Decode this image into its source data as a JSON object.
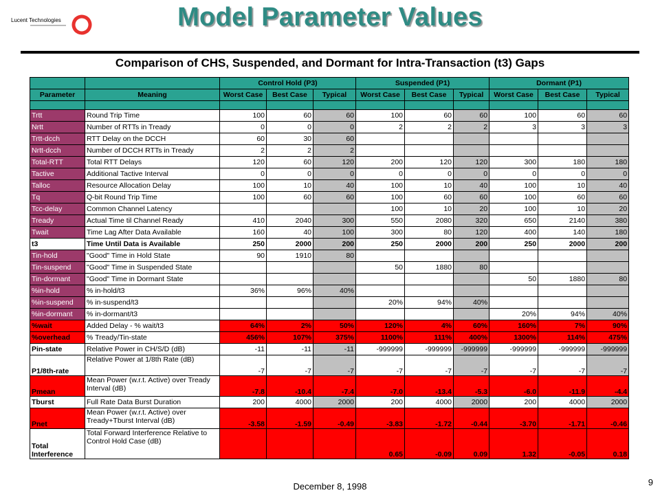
{
  "logo": {
    "text": "Lucent Technologies",
    "color": "#e8322e"
  },
  "title": "Model Parameter Values",
  "subtitle": "Comparison of CHS, Suspended, and Dormant for Intra-Transaction (t3) Gaps",
  "header": {
    "parameter": "Parameter",
    "meaning": "Meaning",
    "groups": [
      "Control Hold (P3)",
      "Suspended (P1)",
      "Dormant (P1)"
    ],
    "cols": [
      "Worst Case",
      "Best Case",
      "Typical"
    ]
  },
  "rows": [
    {
      "p": "Trtt",
      "m": "Round Trip Time",
      "v": [
        [
          "100",
          "60",
          "60"
        ],
        [
          "100",
          "60",
          "60"
        ],
        [
          "100",
          "60",
          "60"
        ]
      ]
    },
    {
      "p": "Nrtt",
      "m": "Number of RTTs in Tready",
      "v": [
        [
          "0",
          "0",
          "0"
        ],
        [
          "2",
          "2",
          "2"
        ],
        [
          "3",
          "3",
          "3"
        ]
      ]
    },
    {
      "p": "Trtt-dcch",
      "m": "RTT Delay on the DCCH",
      "v": [
        [
          "60",
          "30",
          "60"
        ],
        [
          "",
          "",
          ""
        ],
        [
          "",
          "",
          ""
        ]
      ]
    },
    {
      "p": "Nrtt-dcch",
      "m": "Number of DCCH RTTs in Tready",
      "v": [
        [
          "2",
          "2",
          "2"
        ],
        [
          "",
          "",
          ""
        ],
        [
          "",
          "",
          ""
        ]
      ]
    },
    {
      "p": "Total-RTT",
      "m": "Total RTT Delays",
      "v": [
        [
          "120",
          "60",
          "120"
        ],
        [
          "200",
          "120",
          "120"
        ],
        [
          "300",
          "180",
          "180"
        ]
      ]
    },
    {
      "p": "Tactive",
      "m": "Additional Tactive Interval",
      "v": [
        [
          "0",
          "0",
          "0"
        ],
        [
          "0",
          "0",
          "0"
        ],
        [
          "0",
          "0",
          "0"
        ]
      ]
    },
    {
      "p": "Talloc",
      "m": "Resource Allocation Delay",
      "v": [
        [
          "100",
          "10",
          "40"
        ],
        [
          "100",
          "10",
          "40"
        ],
        [
          "100",
          "10",
          "40"
        ]
      ]
    },
    {
      "p": "Tq",
      "m": "Q-bit Round Trip Time",
      "v": [
        [
          "100",
          "60",
          "60"
        ],
        [
          "100",
          "60",
          "60"
        ],
        [
          "100",
          "60",
          "60"
        ]
      ]
    },
    {
      "p": "Tcc-delay",
      "m": "Common Channel Latency",
      "v": [
        [
          "",
          "",
          ""
        ],
        [
          "100",
          "10",
          "20"
        ],
        [
          "100",
          "10",
          "20"
        ]
      ]
    },
    {
      "p": "Tready",
      "m": "Actual Time til Channel Ready",
      "v": [
        [
          "410",
          "2040",
          "300"
        ],
        [
          "550",
          "2080",
          "320"
        ],
        [
          "650",
          "2140",
          "380"
        ]
      ]
    },
    {
      "p": "Twait",
      "m": "Time Lag After Data Available",
      "v": [
        [
          "160",
          "40",
          "100"
        ],
        [
          "300",
          "80",
          "120"
        ],
        [
          "400",
          "140",
          "180"
        ]
      ]
    },
    {
      "p": "t3",
      "m": "Time Until Data is Available",
      "v": [
        [
          "250",
          "2000",
          "200"
        ],
        [
          "250",
          "2000",
          "200"
        ],
        [
          "250",
          "2000",
          "200"
        ]
      ]
    },
    {
      "p": "Tin-hold",
      "m": "\"Good\" Time in Hold State",
      "v": [
        [
          "90",
          "1910",
          "80"
        ],
        [
          "",
          "",
          ""
        ],
        [
          "",
          "",
          ""
        ]
      ]
    },
    {
      "p": "Tin-suspend",
      "m": "\"Good\" Time in Suspended State",
      "v": [
        [
          "",
          "",
          ""
        ],
        [
          "50",
          "1880",
          "80"
        ],
        [
          "",
          "",
          ""
        ]
      ]
    },
    {
      "p": "Tin-dormant",
      "m": "\"Good\" Time in Dormant State",
      "v": [
        [
          "",
          "",
          ""
        ],
        [
          "",
          "",
          ""
        ],
        [
          "50",
          "1880",
          "80"
        ]
      ]
    },
    {
      "p": "%in-hold",
      "m": "% in-hold/t3",
      "v": [
        [
          "36%",
          "96%",
          "40%"
        ],
        [
          "",
          "",
          ""
        ],
        [
          "",
          "",
          ""
        ]
      ]
    },
    {
      "p": "%in-suspend",
      "m": "% in-suspend/t3",
      "v": [
        [
          "",
          "",
          ""
        ],
        [
          "20%",
          "94%",
          "40%"
        ],
        [
          "",
          "",
          ""
        ]
      ]
    },
    {
      "p": "%in-dormant",
      "m": "% in-dormant/t3",
      "v": [
        [
          "",
          "",
          ""
        ],
        [
          "",
          "",
          ""
        ],
        [
          "20%",
          "94%",
          "40%"
        ]
      ]
    },
    {
      "p": "%wait",
      "m": "Added Delay - % wait/t3",
      "v": [
        [
          "64%",
          "2%",
          "50%"
        ],
        [
          "120%",
          "4%",
          "60%"
        ],
        [
          "160%",
          "7%",
          "90%"
        ]
      ]
    },
    {
      "p": "%overhead",
      "m": "% Tready/Tin-state",
      "v": [
        [
          "456%",
          "107%",
          "375%"
        ],
        [
          "1100%",
          "111%",
          "400%"
        ],
        [
          "1300%",
          "114%",
          "475%"
        ]
      ]
    },
    {
      "p": "Pin-state",
      "m": "Relative Power in CH/S/D (dB)",
      "v": [
        [
          "-11",
          "-11",
          "-11"
        ],
        [
          "-999999",
          "-999999",
          "-999999"
        ],
        [
          "-999999",
          "-999999",
          "-999999"
        ]
      ]
    },
    {
      "p": "P1/8th-rate",
      "m": "Relative Power at 1/8th Rate (dB)",
      "v": [
        [
          "-7",
          "-7",
          "-7"
        ],
        [
          "-7",
          "-7",
          "-7"
        ],
        [
          "-7",
          "-7",
          "-7"
        ]
      ]
    },
    {
      "p": "Pmean",
      "m": "Mean Power (w.r.t. Active) over Tready Interval (dB)",
      "v": [
        [
          "-7.8",
          "-10.4",
          "-7.4"
        ],
        [
          "-7.0",
          "-13.4",
          "-5.3"
        ],
        [
          "-6.0",
          "-11.9",
          "-4.4"
        ]
      ]
    },
    {
      "p": "Tburst",
      "m": "Full Rate Data Burst Duration",
      "v": [
        [
          "200",
          "4000",
          "2000"
        ],
        [
          "200",
          "4000",
          "2000"
        ],
        [
          "200",
          "4000",
          "2000"
        ]
      ]
    },
    {
      "p": "Pnet",
      "m": "Mean Power (w.r.t. Active) over Tready+Tburst Interval (dB)",
      "v": [
        [
          "-3.58",
          "-1.59",
          "-0.49"
        ],
        [
          "-3.83",
          "-1.72",
          "-0.44"
        ],
        [
          "-3.70",
          "-1.71",
          "-0.46"
        ]
      ]
    },
    {
      "p": "Total Interference",
      "m": "Total Forward Interference Relative to Control Hold Case (dB)",
      "v": [
        [
          "",
          "",
          ""
        ],
        [
          "0.65",
          "-0.09",
          "0.09"
        ],
        [
          "1.32",
          "-0.05",
          "0.18"
        ]
      ]
    }
  ],
  "footer": {
    "date": "December 8, 1998",
    "page": "9"
  }
}
